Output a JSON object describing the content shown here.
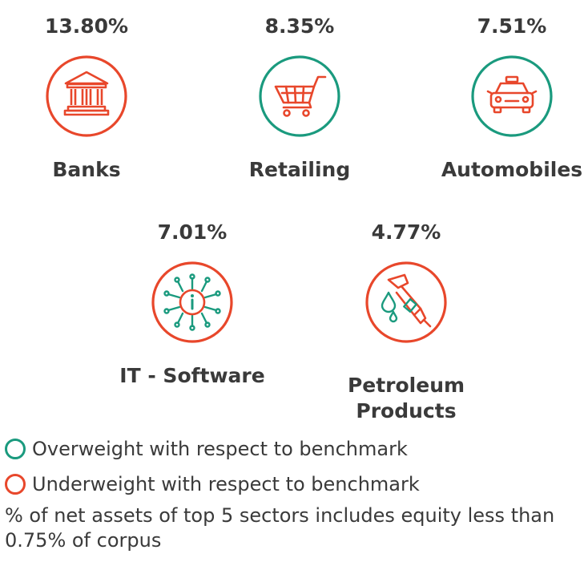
{
  "colors": {
    "overweight": "#1a9a7e",
    "underweight": "#e8472b",
    "text": "#3a3a3a"
  },
  "chart_data": {
    "type": "table",
    "columns": [
      "sector",
      "percent_of_net_assets",
      "weight_vs_benchmark",
      "icon"
    ],
    "rows": [
      {
        "sector": "Banks",
        "value": "13.80%",
        "weight": "underweight",
        "icon": "bank-icon"
      },
      {
        "sector": "Retailing",
        "value": "8.35%",
        "weight": "overweight",
        "icon": "shopping-cart-icon"
      },
      {
        "sector": "Automobiles",
        "value": "7.51%",
        "weight": "overweight",
        "icon": "car-icon"
      },
      {
        "sector": "IT - Software",
        "value": "7.01%",
        "weight": "underweight",
        "icon": "chip-icon"
      },
      {
        "sector": "Petroleum Products",
        "value": "4.77%",
        "weight": "underweight",
        "icon": "fuel-nozzle-icon"
      }
    ]
  },
  "legend": {
    "overweight": "Overweight with respect to benchmark",
    "underweight": "Underweight with respect to benchmark"
  },
  "note": "% of net assets of top 5 sectors includes equity less than 0.75% of corpus"
}
